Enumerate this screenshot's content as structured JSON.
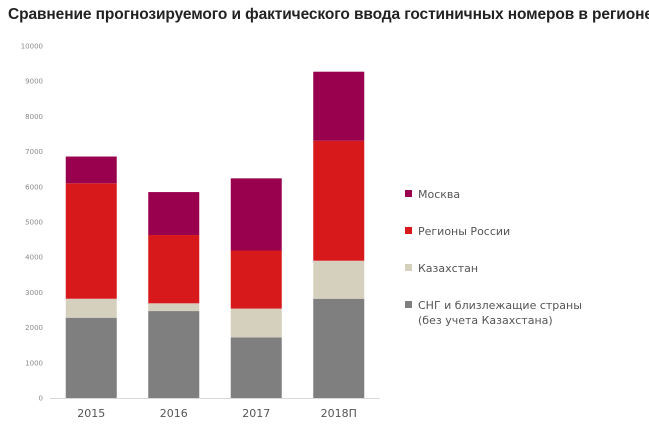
{
  "chart_data": {
    "type": "bar",
    "stacked": true,
    "title": "Сравнение прогнозируемого и фактического ввода гостиничных номеров в регионе",
    "xlabel": "",
    "ylabel": "",
    "ylim": [
      0,
      10000
    ],
    "yticks": [
      "0",
      "1000",
      "2000",
      "3000",
      "4000",
      "5000",
      "6000",
      "7000",
      "8000",
      "9000",
      "10000"
    ],
    "categories": [
      "2015",
      "2016",
      "2017",
      "2018П"
    ],
    "series": [
      {
        "name": "СНГ и близлежащие страны (без учета Казахстана)",
        "color": "#7f7f7f",
        "values": [
          2280,
          2470,
          1720,
          2820
        ]
      },
      {
        "name": "Казахстан",
        "color": "#d5d0be",
        "values": [
          540,
          220,
          820,
          1080
        ]
      },
      {
        "name": "Регионы России",
        "color": "#d7191c",
        "values": [
          3280,
          1940,
          1650,
          3410
        ]
      },
      {
        "name": "Москва",
        "color": "#99004d",
        "values": [
          760,
          1220,
          2050,
          1960
        ]
      }
    ],
    "grid": false,
    "legend_position": "right"
  },
  "legend": [
    {
      "label": "Москва",
      "color": "#99004d"
    },
    {
      "label": "Регионы России",
      "color": "#d7191c"
    },
    {
      "label": "Казахстан",
      "color": "#d5d0be"
    },
    {
      "label": "СНГ и близлежащие страны\n(без учета Казахстана)",
      "color": "#7f7f7f"
    }
  ]
}
